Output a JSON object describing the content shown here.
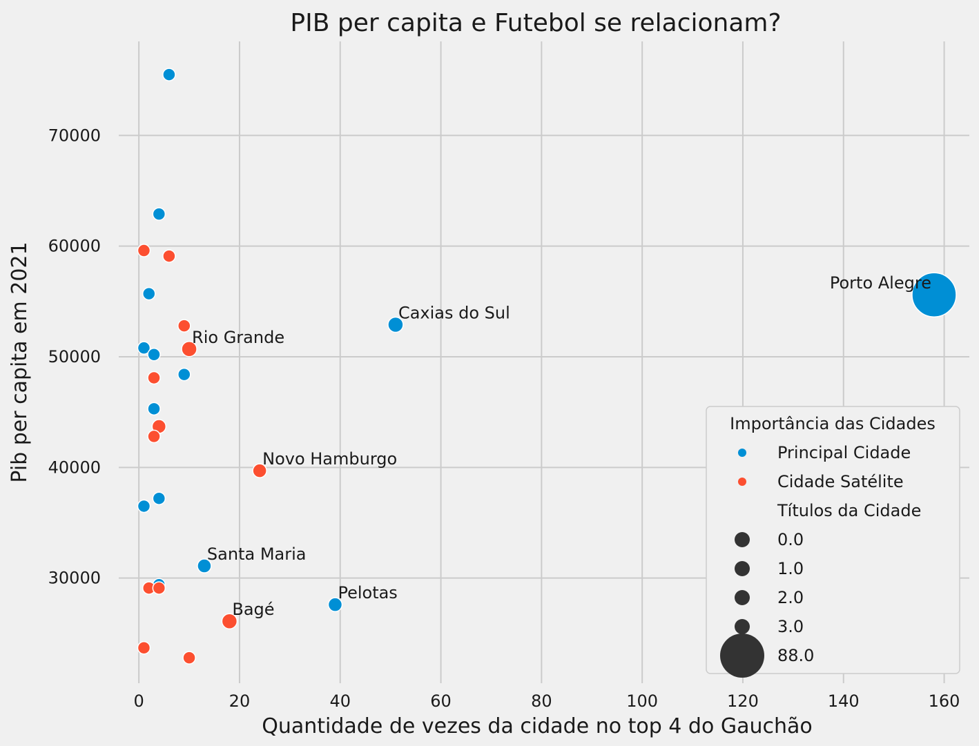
{
  "chart_data": {
    "type": "scatter",
    "title": "PIB per capita e Futebol se relacionam?",
    "xlabel": "Quantidade de vezes da cidade no top 4 do Gauchão",
    "ylabel": "Pib per capita em 2021",
    "xlim": [
      -4,
      165
    ],
    "ylim": [
      20500,
      78500
    ],
    "xticks": [
      0,
      20,
      40,
      60,
      80,
      100,
      120,
      140,
      160
    ],
    "yticks": [
      30000,
      40000,
      50000,
      60000,
      70000
    ],
    "grid": true,
    "legend_placement": "lower-right",
    "colors": {
      "Principal Cidade": "#008fd5",
      "Cidade Satélite": "#fc4f30",
      "size_marker": "#333333"
    },
    "legend": {
      "title": "Importância das Cidades",
      "hue_entries": [
        "Principal Cidade",
        "Cidade Satélite"
      ],
      "size_title": "Títulos da Cidade",
      "size_entries": [
        "0.0",
        "1.0",
        "2.0",
        "3.0",
        "88.0"
      ]
    },
    "series": [
      {
        "name": "Principal Cidade",
        "points": [
          {
            "x": 158,
            "y": 55600,
            "titles": 88,
            "label": "Porto Alegre"
          },
          {
            "x": 51,
            "y": 52900,
            "titles": 3,
            "label": "Caxias do Sul"
          },
          {
            "x": 39,
            "y": 27600,
            "titles": 2,
            "label": "Pelotas"
          },
          {
            "x": 13,
            "y": 31100,
            "titles": 1,
            "label": "Santa Maria"
          },
          {
            "x": 6,
            "y": 75500,
            "titles": 0
          },
          {
            "x": 4,
            "y": 62900,
            "titles": 0
          },
          {
            "x": 2,
            "y": 55700,
            "titles": 0
          },
          {
            "x": 1,
            "y": 50800,
            "titles": 0
          },
          {
            "x": 3,
            "y": 50200,
            "titles": 0
          },
          {
            "x": 9,
            "y": 48400,
            "titles": 0
          },
          {
            "x": 3,
            "y": 45300,
            "titles": 0
          },
          {
            "x": 4,
            "y": 37200,
            "titles": 0
          },
          {
            "x": 1,
            "y": 36500,
            "titles": 0
          },
          {
            "x": 4,
            "y": 29400,
            "titles": 0
          }
        ]
      },
      {
        "name": "Cidade Satélite",
        "points": [
          {
            "x": 10,
            "y": 50700,
            "titles": 3,
            "label": "Rio Grande"
          },
          {
            "x": 24,
            "y": 39700,
            "titles": 1,
            "label": "Novo Hamburgo"
          },
          {
            "x": 18,
            "y": 26100,
            "titles": 3,
            "label": "Bagé"
          },
          {
            "x": 1,
            "y": 59600,
            "titles": 0
          },
          {
            "x": 6,
            "y": 59100,
            "titles": 0
          },
          {
            "x": 9,
            "y": 52800,
            "titles": 0
          },
          {
            "x": 3,
            "y": 48100,
            "titles": 0
          },
          {
            "x": 4,
            "y": 43700,
            "titles": 1
          },
          {
            "x": 3,
            "y": 42800,
            "titles": 0
          },
          {
            "x": 2,
            "y": 29100,
            "titles": 0
          },
          {
            "x": 4,
            "y": 29100,
            "titles": 0
          },
          {
            "x": 1,
            "y": 23700,
            "titles": 0
          },
          {
            "x": 10,
            "y": 22800,
            "titles": 0
          }
        ]
      }
    ]
  }
}
